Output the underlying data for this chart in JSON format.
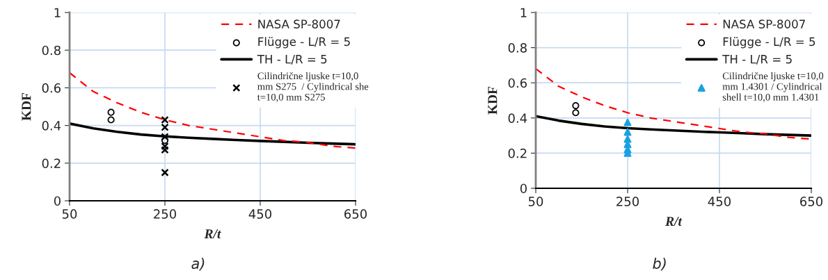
{
  "chart_data": [
    {
      "type": "line",
      "xlabel": "R/t",
      "ylabel": "KDF",
      "annotations": [
        "a)"
      ],
      "xlim": [
        50,
        650
      ],
      "xticks": [
        50,
        250,
        450,
        650
      ],
      "ylim": [
        0,
        1
      ],
      "yticks": [
        0,
        0.2,
        0.4,
        0.6,
        0.8,
        1
      ],
      "grid": true,
      "legend": "top right",
      "series": [
        {
          "name": "NASA SP-8007",
          "type": "line",
          "line_style": "dashed",
          "marker": "none",
          "color": "#ff0000",
          "x": [
            50,
            100,
            150,
            200,
            250,
            300,
            350,
            400,
            450,
            500,
            550,
            600,
            650
          ],
          "values": [
            0.68,
            0.58,
            0.52,
            0.47,
            0.43,
            0.4,
            0.38,
            0.36,
            0.34,
            0.32,
            0.31,
            0.29,
            0.28
          ]
        },
        {
          "name": "Flügge - L/R = 5",
          "type": "scatter",
          "marker": "circle",
          "color": "#000000",
          "x": [
            137,
            137,
            250
          ],
          "values": [
            0.47,
            0.43,
            0.32
          ]
        },
        {
          "name": "TH - L/R = 5",
          "type": "line",
          "line_style": "solid",
          "marker": "none",
          "color": "#000000",
          "x": [
            50,
            100,
            150,
            200,
            250,
            300,
            350,
            400,
            450,
            500,
            550,
            600,
            650
          ],
          "values": [
            0.41,
            0.385,
            0.366,
            0.352,
            0.342,
            0.335,
            0.329,
            0.323,
            0.318,
            0.313,
            0.308,
            0.304,
            0.3
          ]
        },
        {
          "name": "Cilindrične ljuske t=10,0\nmm S275  / Cylindrical she\nt=10,0 mm S275",
          "type": "scatter",
          "marker": "cross",
          "color": "#000000",
          "x": [
            250,
            250,
            250,
            250,
            250,
            250
          ],
          "values": [
            0.43,
            0.39,
            0.34,
            0.29,
            0.27,
            0.15
          ]
        }
      ]
    },
    {
      "type": "line",
      "xlabel": "R/t",
      "ylabel": "KDF",
      "annotations": [
        "b)"
      ],
      "xlim": [
        50,
        650
      ],
      "xticks": [
        50,
        250,
        450,
        650
      ],
      "ylim": [
        0,
        1
      ],
      "yticks": [
        0,
        0.2,
        0.4,
        0.6,
        0.8,
        1
      ],
      "grid": true,
      "legend": "top right",
      "series": [
        {
          "name": "NASA SP-8007",
          "type": "line",
          "line_style": "dashed",
          "marker": "none",
          "color": "#ff0000",
          "x": [
            50,
            100,
            150,
            200,
            250,
            300,
            350,
            400,
            450,
            500,
            550,
            600,
            650
          ],
          "values": [
            0.68,
            0.58,
            0.52,
            0.47,
            0.43,
            0.4,
            0.38,
            0.36,
            0.34,
            0.32,
            0.31,
            0.29,
            0.28
          ]
        },
        {
          "name": "Flügge - L/R = 5",
          "type": "scatter",
          "marker": "circle",
          "color": "#000000",
          "x": [
            137,
            137
          ],
          "values": [
            0.47,
            0.43
          ]
        },
        {
          "name": "TH - L/R = 5",
          "type": "line",
          "line_style": "solid",
          "marker": "none",
          "color": "#000000",
          "x": [
            50,
            100,
            150,
            200,
            250,
            300,
            350,
            400,
            450,
            500,
            550,
            600,
            650
          ],
          "values": [
            0.41,
            0.385,
            0.366,
            0.352,
            0.342,
            0.335,
            0.329,
            0.323,
            0.318,
            0.313,
            0.308,
            0.304,
            0.3
          ]
        },
        {
          "name": "Cilindrične ljuske t=10,0\nmm 1.4301 / Cylindrical\nshell t=10,0 mm 1.4301",
          "type": "scatter",
          "marker": "triangle",
          "color": "#1ba1e2",
          "x": [
            250,
            250,
            250,
            250,
            250,
            250
          ],
          "values": [
            0.375,
            0.32,
            0.28,
            0.25,
            0.22,
            0.2
          ]
        }
      ]
    }
  ]
}
